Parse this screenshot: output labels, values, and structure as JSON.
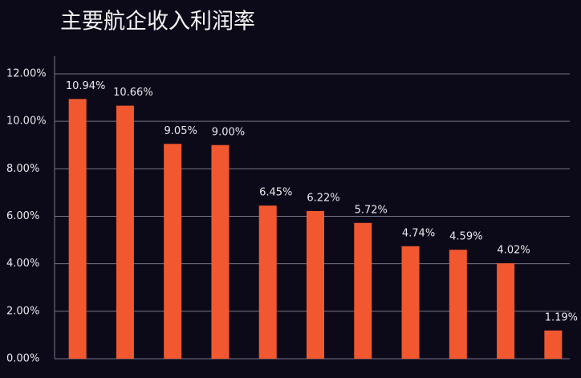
{
  "chart_data": {
    "type": "bar",
    "title": "主要航企收入利润率",
    "categories": [
      null,
      null,
      null,
      null,
      null,
      null,
      null,
      null,
      null,
      null,
      null
    ],
    "values": [
      10.94,
      10.66,
      9.05,
      9.0,
      6.45,
      6.22,
      5.72,
      4.74,
      4.59,
      4.02,
      1.19
    ],
    "value_labels": [
      "10.94%",
      "10.66%",
      "9.05%",
      "9.00%",
      "6.45%",
      "6.22%",
      "5.72%",
      "4.74%",
      "4.59%",
      "4.02%",
      "1.19%"
    ],
    "color": "#f2582f",
    "ylim": [
      0,
      12
    ],
    "yticks": [
      {
        "value": 0,
        "label": "0.00%"
      },
      {
        "value": 2,
        "label": "2.00%"
      },
      {
        "value": 4,
        "label": "4.00%"
      },
      {
        "value": 6,
        "label": "6.00%"
      },
      {
        "value": 8,
        "label": "8.00%"
      },
      {
        "value": 10,
        "label": "10.00%"
      },
      {
        "value": 12,
        "label": "12.00%"
      }
    ],
    "grid": true
  }
}
